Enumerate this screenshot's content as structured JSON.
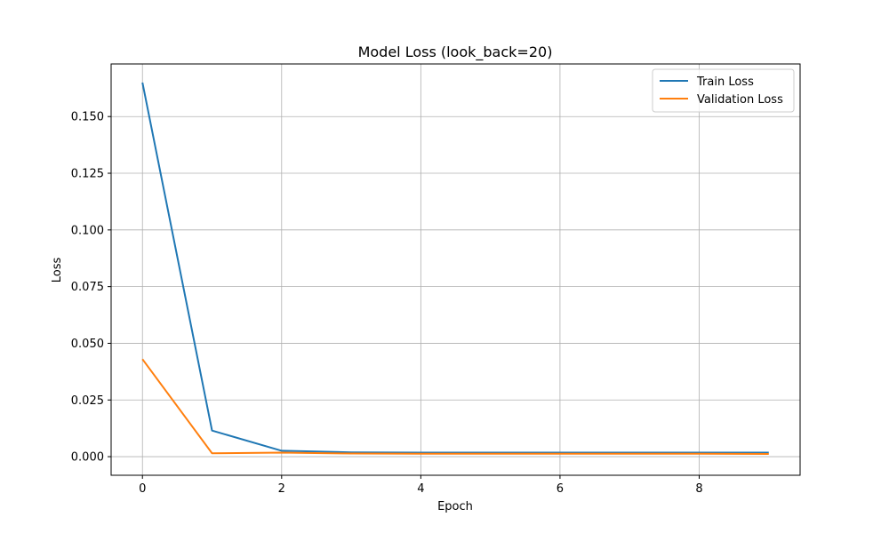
{
  "chart_data": {
    "type": "line",
    "title": "Model Loss (look_back=20)",
    "xlabel": "Epoch",
    "ylabel": "Loss",
    "x": [
      0,
      1,
      2,
      3,
      4,
      5,
      6,
      7,
      8,
      9
    ],
    "xlim": [
      -0.45,
      9.45
    ],
    "ylim": [
      -0.0082,
      0.1732
    ],
    "xticks": [
      0,
      2,
      4,
      6,
      8
    ],
    "yticks": [
      0.0,
      0.025,
      0.05,
      0.075,
      0.1,
      0.125,
      0.15
    ],
    "ytick_labels": [
      "0.000",
      "0.025",
      "0.050",
      "0.075",
      "0.100",
      "0.125",
      "0.150"
    ],
    "grid": true,
    "legend_position": "top-right",
    "series": [
      {
        "name": "Train Loss",
        "color": "#1f77b4",
        "values": [
          0.165,
          0.0115,
          0.0026,
          0.0019,
          0.0018,
          0.0018,
          0.0018,
          0.0018,
          0.0018,
          0.0018
        ]
      },
      {
        "name": "Validation Loss",
        "color": "#ff7f0e",
        "values": [
          0.043,
          0.0015,
          0.0018,
          0.0014,
          0.0013,
          0.0013,
          0.0013,
          0.0013,
          0.0013,
          0.0012
        ]
      }
    ]
  }
}
